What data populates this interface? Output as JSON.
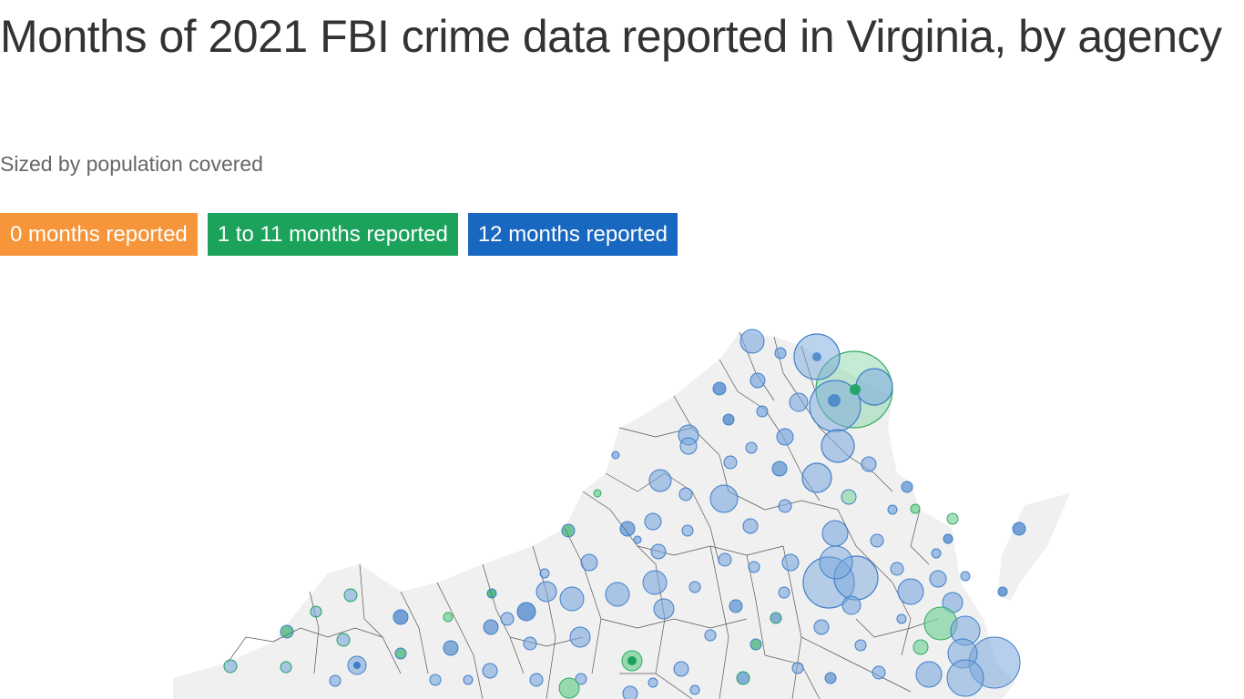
{
  "title": "Months of 2021 FBI crime data reported in Virginia, by agency",
  "subtitle": "Sized by population covered",
  "legend": [
    {
      "label": "0 months reported",
      "color": "#f7953a"
    },
    {
      "label": "1 to 11 months reported",
      "color": "#1ba35c"
    },
    {
      "label": "12 months reported",
      "color": "#1867c0"
    }
  ],
  "colors": {
    "state_fill": "#f0f0f0",
    "county_border": "#555555",
    "blue_fill": "#7aa7dd",
    "blue_stroke": "#3f7ec9",
    "green_fill": "#7fd39f",
    "green_stroke": "#2eab61"
  }
}
